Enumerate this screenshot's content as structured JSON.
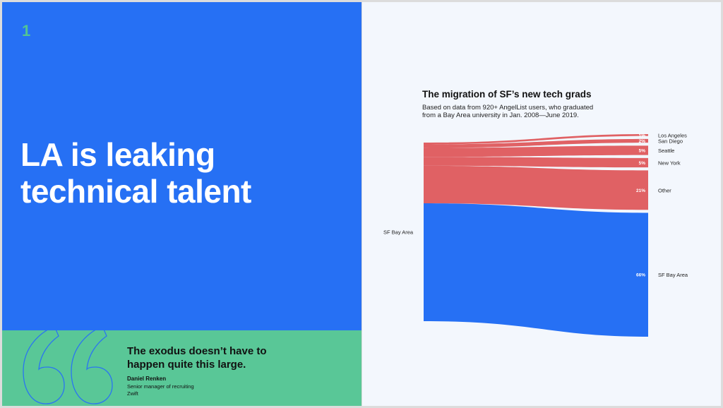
{
  "slide": {
    "page_number": "1",
    "headline": [
      "LA is leaking",
      "technical talent"
    ]
  },
  "quote": {
    "text": [
      "The exodus doesn’t have to",
      "happen quite this large."
    ],
    "author": "Daniel Renken",
    "role": "Senior manager of recruiting",
    "company": "Zwift",
    "icon": "quotation-mark-icon"
  },
  "colors": {
    "left_panel": "#2670f4",
    "quote_panel": "#59c797",
    "page_number": "#52c494",
    "right_panel": "#f3f7fd",
    "flow_red": "#e06164",
    "flow_blue": "#2670f4"
  },
  "chart_data": {
    "type": "sankey",
    "title": "The migration of SF’s new tech grads",
    "subtitle": [
      "Based on data from 920+ AngelList users, who graduated",
      "from a Bay Area university in Jan. 2008—June 2019."
    ],
    "source": "SF Bay Area",
    "flows": [
      {
        "target": "Los Angeles",
        "value": 1,
        "label": "1%",
        "color": "#e06164"
      },
      {
        "target": "San Diego",
        "value": 2,
        "label": "2%",
        "color": "#e06164"
      },
      {
        "target": "Seattle",
        "value": 5,
        "label": "5%",
        "color": "#e06164"
      },
      {
        "target": "New York",
        "value": 5,
        "label": "5%",
        "color": "#e06164"
      },
      {
        "target": "Other",
        "value": 21,
        "label": "21%",
        "color": "#e06164"
      },
      {
        "target": "SF Bay Area",
        "value": 66,
        "label": "66%",
        "color": "#2670f4"
      }
    ]
  }
}
